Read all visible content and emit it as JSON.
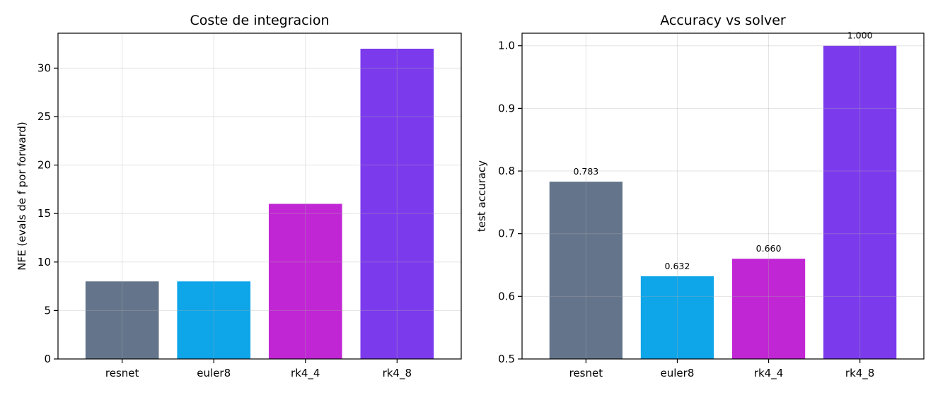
{
  "chart_data": [
    {
      "type": "bar",
      "title": "Coste de integracion",
      "xlabel": "",
      "ylabel": "NFE (evals de f por forward)",
      "categories": [
        "resnet",
        "euler8",
        "rk4_4",
        "rk4_8"
      ],
      "values": [
        8,
        8,
        16,
        32
      ],
      "colors": [
        "#64748b",
        "#0ea5e9",
        "#c026d3",
        "#7c3aed"
      ],
      "ylim": [
        0,
        33.6
      ],
      "yticks": [
        0,
        5,
        10,
        15,
        20,
        25,
        30
      ],
      "ytick_labels": [
        "0",
        "5",
        "10",
        "15",
        "20",
        "25",
        "30"
      ],
      "data_labels": [],
      "grid": true
    },
    {
      "type": "bar",
      "title": "Accuracy vs solver",
      "xlabel": "",
      "ylabel": "test accuracy",
      "categories": [
        "resnet",
        "euler8",
        "rk4_4",
        "rk4_8"
      ],
      "values": [
        0.783,
        0.632,
        0.66,
        1.0
      ],
      "colors": [
        "#64748b",
        "#0ea5e9",
        "#c026d3",
        "#7c3aed"
      ],
      "ylim": [
        0.5,
        1.02
      ],
      "yticks": [
        0.5,
        0.6,
        0.7,
        0.8,
        0.9,
        1.0
      ],
      "ytick_labels": [
        "0.5",
        "0.6",
        "0.7",
        "0.8",
        "0.9",
        "1.0"
      ],
      "data_labels": [
        "0.783",
        "0.632",
        "0.660",
        "1.000"
      ],
      "grid": true
    }
  ]
}
